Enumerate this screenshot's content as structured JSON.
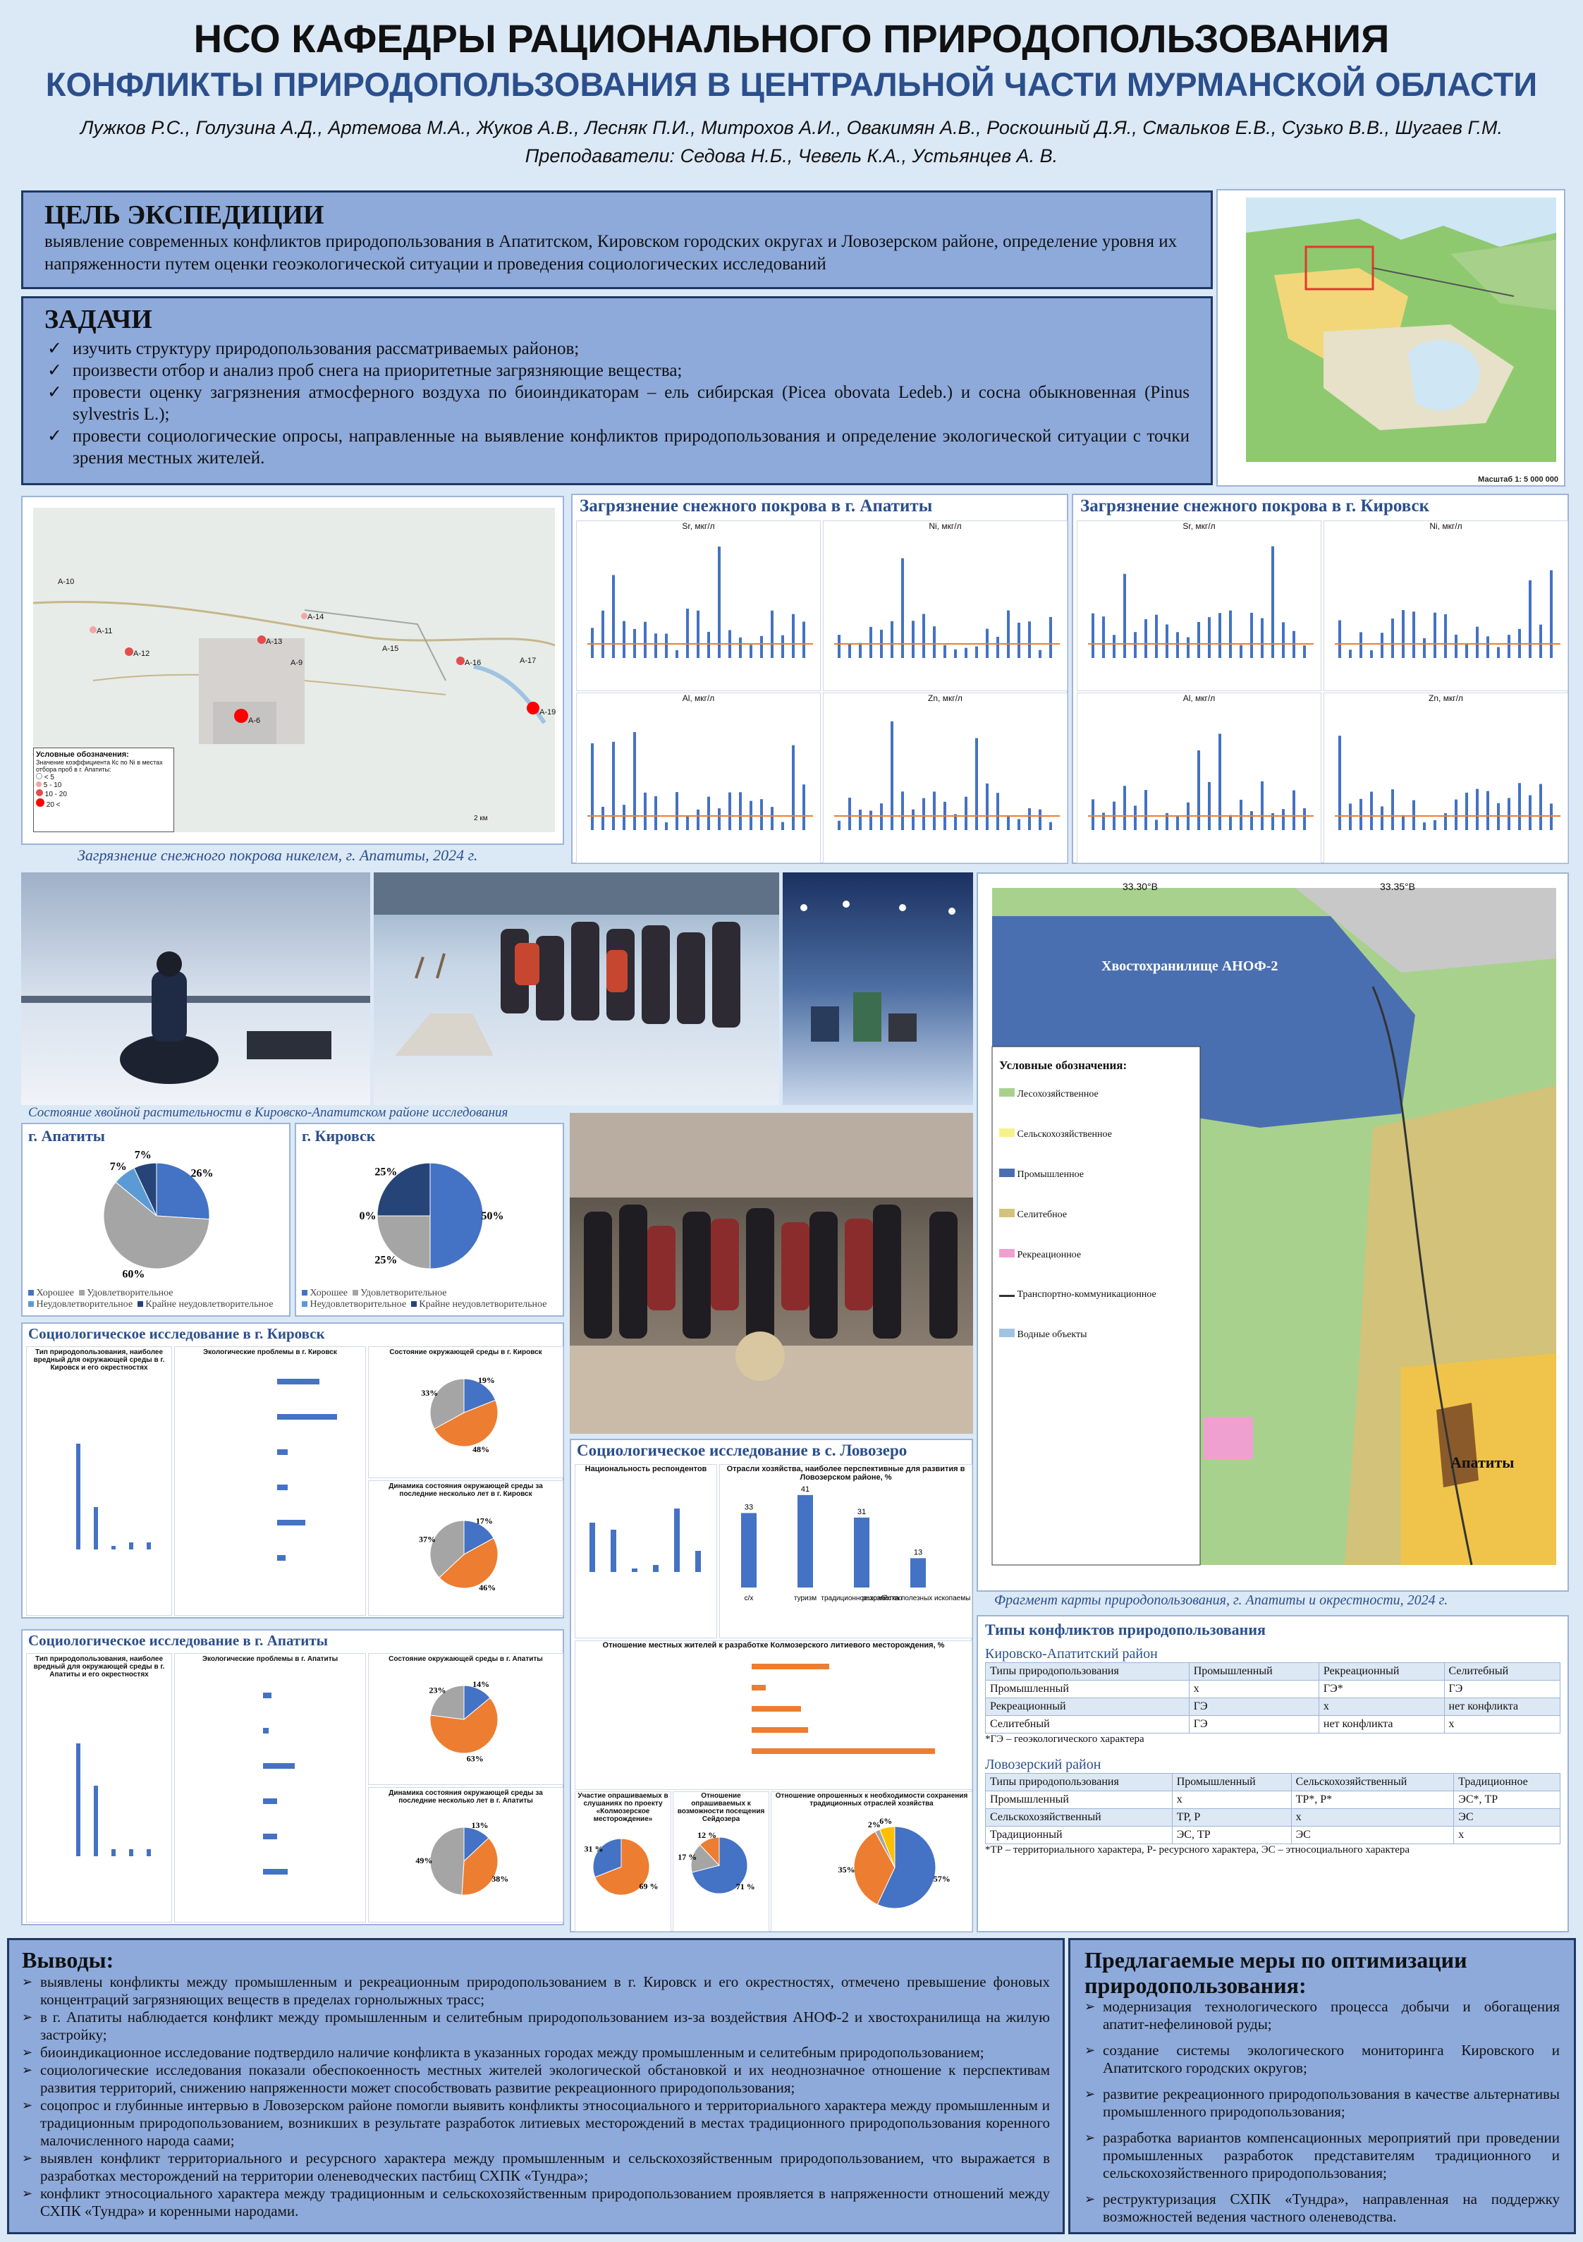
{
  "header": {
    "title": "НСО КАФЕДРЫ РАЦИОНАЛЬНОГО ПРИРОДОПОЛЬЗОВАНИЯ",
    "subtitle": "КОНФЛИКТЫ ПРИРОДОПОЛЬЗОВАНИЯ В ЦЕНТРАЛЬНОЙ ЧАСТИ МУРМАНСКОЙ ОБЛАСТИ",
    "authors": "Лужков Р.С., Голузина А.Д., Артемова М.А., Жуков А.В., Лесняк П.И., Митрохов А.И., Овакимян А.В., Роскошный Д.Я., Смальков Е.В., Сузько В.В., Шугаев Г.М.",
    "teachers": "Преподаватели: Седова Н.Б., Чевель К.А., Устьянцев А. В."
  },
  "goal": {
    "title": "ЦЕЛЬ ЭКСПЕДИЦИИ",
    "text": "выявление современных конфликтов природопользования в Апатитском, Кировском городских округах и Ловозерском районе, определение уровня их напряженности путем оценки геоэкологической ситуации и проведения социологических исследований"
  },
  "tasks": {
    "title": "ЗАДАЧИ",
    "items": [
      "изучить структуру природопользования рассматриваемых районов;",
      "произвести отбор и анализ проб снега на приоритетные загрязняющие вещества;",
      "провести оценку загрязнения атмосферного воздуха по биоиндикаторам – ель сибирская (Picea obovata Ledeb.) и сосна обыкновенная (Pinus sylvestris L.);",
      "провести социологические опросы, направленные на выявление конфликтов природопользования и определение экологической ситуации с точки зрения местных жителей."
    ]
  },
  "region_map": {
    "scale": "Масштаб 1: 5 000 000"
  },
  "nickel_map": {
    "caption": "Загрязнение снежного покрова никелем, г. Апатиты, 2024 г.",
    "points": [
      "А-10",
      "А-11",
      "А-12",
      "А-13",
      "А-14",
      "А-15",
      "А-16",
      "А-17",
      "А-19",
      "А-9",
      "А-6"
    ],
    "legend_title": "Условные обозначения:",
    "legend_sub": "Значение коэффициента Кс по Ni в местах отбора проб в г. Апатиты:",
    "legend_items": [
      "< 5",
      "5 - 10",
      "10 - 20",
      "20 <"
    ],
    "scale": "2 км"
  },
  "snow_apatity": {
    "title": "Загрязнение снежного покрова в г. Апатиты",
    "charts": [
      "Sr, мкг/л",
      "Ni, мкг/л",
      "Al, мкг/л",
      "Zn, мкг/л"
    ]
  },
  "snow_kirovsk": {
    "title": "Загрязнение снежного покрова в г. Кировск",
    "charts": [
      "Sr, мкг/л",
      "Ni, мкг/л",
      "Al, мкг/л",
      "Zn, мкг/л"
    ]
  },
  "conifer": {
    "caption": "Состояние хвойной растительности в Кировско-Апатитском районе исследования",
    "legend": [
      "Хорошее",
      "Удовлетворительное",
      "Неудовлетворительное",
      "Крайне неудовлетворительное"
    ],
    "apatity": {
      "title": "г. Апатиты",
      "labels": [
        "26%",
        "60%",
        "7%",
        "7%"
      ]
    },
    "kirovsk": {
      "title": "г. Кировск",
      "labels": [
        "50%",
        "25%",
        "0%",
        "25%"
      ]
    }
  },
  "chart_data": [
    {
      "type": "pie",
      "title": "г. Апатиты",
      "categories": [
        "Хорошее",
        "Удовлетворительное",
        "Неудовлетворительное",
        "Крайне неудовлетворительное"
      ],
      "values": [
        26,
        60,
        7,
        7
      ]
    },
    {
      "type": "pie",
      "title": "г. Кировск",
      "categories": [
        "Хорошее",
        "Удовлетворительное",
        "Неудовлетворительное",
        "Крайне неудовлетворительное"
      ],
      "values": [
        50,
        25,
        0,
        25
      ]
    }
  ],
  "survey_kirovsk": {
    "title": "Социологическое исследование в г. Кировск",
    "c1": "Тип природопользования, наиболее вредный для окружающей среды в г. Кировск и его окрестностях",
    "c2": "Экологические проблемы в г. Кировск",
    "c3": "Состояние окружающей среды в г. Кировск",
    "c3_labels": [
      "19%",
      "48%",
      "33%"
    ],
    "c4": "Динамика состояния окружающей среды за последние несколько лет в г. Кировск",
    "c4_labels": [
      "17%",
      "46%",
      "37%"
    ]
  },
  "survey_apatity": {
    "title": "Социологическое исследование в г. Апатиты",
    "c1": "Тип природопользования, наиболее вредный для окружающей среды в г. Апатиты и его окрестностях",
    "c2": "Экологические проблемы в г. Апатиты",
    "c3": "Состояние окружающей среды в г. Апатиты",
    "c3_labels": [
      "14%",
      "63%",
      "23%"
    ],
    "c4": "Динамика состояния окружающей среды за последние несколько лет в г. Апатиты",
    "c4_labels": [
      "13%",
      "38%",
      "49%"
    ]
  },
  "survey_lovozero": {
    "title": "Социологическое исследование в с. Ловозеро",
    "c1": "Национальность респондентов",
    "c2": "Отрасли хозяйства, наиболее перспективные для развития в Ловозерском районе, %",
    "c2_cats": [
      "с/х",
      "туризм",
      "традиционное хозяйство",
      "разработка полезных ископаемых"
    ],
    "c2_vals": [
      "33",
      "41",
      "31",
      "13"
    ],
    "c3": "Отношение местных жителей к разработке Колмозерского литиевого месторождения, %",
    "c4": "Участие опрашиваемых в слушаниях по проекту «Колмозерское месторождение»",
    "c4_labels": [
      "69 %",
      "31 %"
    ],
    "c5": "Отношение опрашиваемых к возможности посещения Сейдозера",
    "c5_labels": [
      "71 %",
      "17 %",
      "12 %"
    ],
    "c6": "Отношение опрошенных к необходимости сохранения традиционных отраслей хозяйства",
    "c6_labels": [
      "57%",
      "35%",
      "2%",
      "6%"
    ]
  },
  "land_map": {
    "caption": "Фрагмент карты природопользования, г. Апатиты и окрестности, 2024 г.",
    "coord_top": [
      "33.30°В",
      "33.35°В"
    ],
    "tailings": "Хвостохранилище АНОФ-2",
    "city": "Апатиты",
    "legend_title": "Условные обозначения:",
    "legend": [
      "Лесохозяйственное",
      "Сельскохозяйственное",
      "Промышленное",
      "Селитебное",
      "Рекреационное",
      "Транспортно-коммуникационное",
      "Водные объекты"
    ]
  },
  "conflicts": {
    "title": "Типы конфликтов природопользования",
    "ka_title": "Кировско-Апатитский район",
    "ka_head": [
      "Типы природопользования",
      "Промышленный",
      "Рекреационный",
      "Селитебный"
    ],
    "ka_rows": [
      [
        "Промышленный",
        "x",
        "ГЭ*",
        "ГЭ"
      ],
      [
        "Рекреационный",
        "ГЭ",
        "x",
        "нет конфликта"
      ],
      [
        "Селитебный",
        "ГЭ",
        "нет конфликта",
        "x"
      ]
    ],
    "ka_note": "*ГЭ – геоэкологического характера",
    "lv_title": "Ловозерский район",
    "lv_head": [
      "Типы природопользования",
      "Промышленный",
      "Сельскохозяйственный",
      "Традиционное"
    ],
    "lv_rows": [
      [
        "Промышленный",
        "x",
        "ТР*, Р*",
        "ЭС*, ТР"
      ],
      [
        "Сельскохозяйственный",
        "ТР, Р",
        "x",
        "ЭС"
      ],
      [
        "Традиционный",
        "ЭС, ТР",
        "ЭС",
        "x"
      ]
    ],
    "lv_note": "*ТР – территориального характера, Р- ресурсного характера, ЭС – этносоциального характера"
  },
  "conclusions": {
    "title": "Выводы:",
    "items": [
      "выявлены конфликты между промышленным и рекреационным природопользованием в г. Кировск и его окрестностях, отмечено превышение фоновых концентраций загрязняющих веществ в пределах горнолыжных трасс;",
      "в г. Апатиты наблюдается конфликт между промышленным и селитебным природопользованием из-за воздействия АНОФ-2 и хвостохранилища на жилую застройку;",
      "биоиндикационное исследование подтвердило наличие конфликта в указанных городах между промышленным и селитебным природопользованием;",
      "социологические исследования показали обеспокоенность местных жителей экологической обстановкой и их неоднозначное отношение к перспективам развития территорий, снижению напряженности может способствовать развитие рекреационного природопользования;",
      "соцопрос и глубинные интервью в Ловозерском районе помогли выявить конфликты этносоциального и территориального характера между промышленным и традиционным природопользованием, возникших в результате разработок литиевых месторождений в местах традиционного природопользования коренного малочисленного народа саами;",
      "выявлен конфликт территориального и ресурсного характера между промышленным и сельскохозяйственным природопользованием, что выражается в разработках месторождений на территории оленеводческих пастбищ СХПК «Тундра»;",
      "конфликт этносоциального характера между традиционным и сельскохозяйственным природопользованием проявляется в напряженности отношений между СХПК «Тундра» и коренными народами."
    ]
  },
  "measures": {
    "title": "Предлагаемые меры по оптимизации природопользования:",
    "items": [
      "модернизация технологического процесса добычи и обогащения апатит-нефелиновой руды;",
      "создание системы экологического мониторинга Кировского и Апатитского городских округов;",
      "развитие рекреационного природопользования в качестве альтернативы промышленного природопользования;",
      "разработка вариантов компенсационных мероприятий при проведении промышленных разработок представителям традиционного и сельскохозяйственного природопользования;",
      "реструктуризация СХПК «Тундра», направленная на поддержку возможностей ведения частного оленеводства."
    ]
  },
  "colors": {
    "accent": "#4472c4",
    "orange": "#ed7d31",
    "gray": "#a5a5a5",
    "navy": "#1f3864",
    "panel": "#8eaadb"
  }
}
